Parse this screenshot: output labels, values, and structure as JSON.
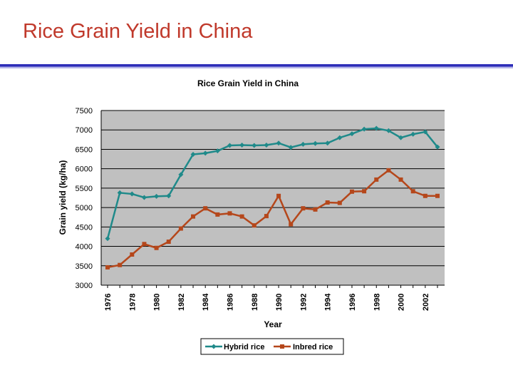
{
  "slide": {
    "title": "Rice Grain Yield in China"
  },
  "colors": {
    "slide_title": "#c0392b",
    "hybrid": "#1f8a8a",
    "inbred": "#b5471b",
    "plot_bg": "#c0c0c0",
    "rule": "#2d2db8"
  },
  "chart_data": {
    "type": "line",
    "title": "Rice Grain Yield in China",
    "xlabel": "Year",
    "ylabel": "Grain yield (kg/ha)",
    "x": [
      1976,
      1977,
      1978,
      1979,
      1980,
      1981,
      1982,
      1983,
      1984,
      1985,
      1986,
      1987,
      1988,
      1989,
      1990,
      1991,
      1992,
      1993,
      1994,
      1995,
      1996,
      1997,
      1998,
      1999,
      2000,
      2001,
      2002,
      2003
    ],
    "x_tick_labels": [
      "1976",
      "1978",
      "1980",
      "1982",
      "1984",
      "1986",
      "1988",
      "1990",
      "1992",
      "1994",
      "1996",
      "1998",
      "2000",
      "2002"
    ],
    "y_ticks": [
      3000,
      3500,
      4000,
      4500,
      5000,
      5500,
      6000,
      6500,
      7000,
      7500
    ],
    "y_tick_labels": [
      "3000",
      "3500",
      "4000",
      "4500",
      "5000",
      "5500",
      "6000",
      "6500",
      "7000",
      "7500"
    ],
    "ylim": [
      3000,
      7500
    ],
    "grid": "horizontal",
    "legend_position": "bottom",
    "series": [
      {
        "name": "Hybrid rice",
        "color": "#1f8a8a",
        "values": [
          4200,
          5380,
          5350,
          5260,
          5290,
          5300,
          5850,
          6370,
          6400,
          6460,
          6600,
          6610,
          6600,
          6610,
          6660,
          6550,
          6630,
          6650,
          6660,
          6800,
          6900,
          7020,
          7040,
          6980,
          6800,
          6890,
          6950,
          6560
        ]
      },
      {
        "name": "Inbred rice",
        "color": "#b5471b",
        "values": [
          3460,
          3520,
          3790,
          4060,
          3960,
          4120,
          4460,
          4770,
          4980,
          4820,
          4850,
          4770,
          4540,
          4780,
          5300,
          4570,
          4980,
          4950,
          5130,
          5120,
          5410,
          5420,
          5720,
          5960,
          5720,
          5420,
          5300,
          5300
        ]
      }
    ]
  }
}
